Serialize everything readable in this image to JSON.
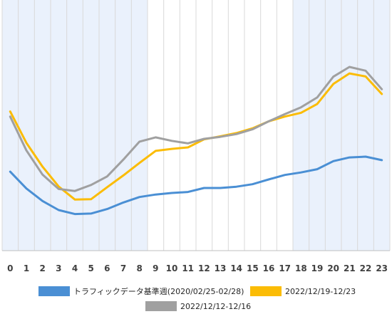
{
  "chart_data": {
    "type": "line",
    "x": [
      0,
      1,
      2,
      3,
      4,
      5,
      6,
      7,
      8,
      9,
      10,
      11,
      12,
      13,
      14,
      15,
      16,
      17,
      18,
      19,
      20,
      21,
      22,
      23
    ],
    "x_tick_labels": [
      "0",
      "1",
      "2",
      "3",
      "4",
      "5",
      "6",
      "7",
      "8",
      "9",
      "10",
      "11",
      "12",
      "13",
      "14",
      "15",
      "16",
      "17",
      "18",
      "19",
      "20",
      "21",
      "22",
      "23"
    ],
    "xlim": [
      -0.5,
      23.5
    ],
    "ylim": [
      0,
      100
    ],
    "y_ticks_shown": false,
    "grid": {
      "vertical": true,
      "horizontal": false
    },
    "shaded_x_ranges": [
      [
        -0.5,
        8.5
      ],
      [
        17.5,
        23.5
      ]
    ],
    "shade_color": "#eaf1fc",
    "legend_position": "bottom",
    "series": [
      {
        "name": "トラフィックデータ基準週(2020/02/25-02/28)",
        "color": "#4a8fd4",
        "values": [
          31.5,
          24.8,
          19.8,
          16.2,
          14.6,
          14.8,
          16.6,
          19.2,
          21.4,
          22.4,
          23.0,
          23.4,
          25.0,
          25.0,
          25.5,
          26.5,
          28.4,
          30.2,
          31.2,
          32.5,
          35.7,
          37.2,
          37.5,
          36.1
        ]
      },
      {
        "name": "2022/12/19-12/23",
        "color": "#fbbc05",
        "values": [
          55.5,
          43.0,
          33.5,
          25.6,
          20.4,
          20.5,
          25.3,
          30.0,
          35.0,
          39.8,
          40.6,
          41.2,
          44.4,
          45.6,
          46.9,
          48.8,
          51.6,
          53.5,
          55.0,
          58.5,
          66.5,
          70.7,
          69.5,
          62.5
        ]
      },
      {
        "name": "2022/12/12-12/16",
        "color": "#a0a0a0",
        "values": [
          53.5,
          40.0,
          30.3,
          24.6,
          23.8,
          26.2,
          29.6,
          36.3,
          43.5,
          45.2,
          43.8,
          42.8,
          44.6,
          45.4,
          46.5,
          48.4,
          51.6,
          54.5,
          57.2,
          61.1,
          69.4,
          73.3,
          71.8,
          64.4
        ]
      }
    ]
  }
}
